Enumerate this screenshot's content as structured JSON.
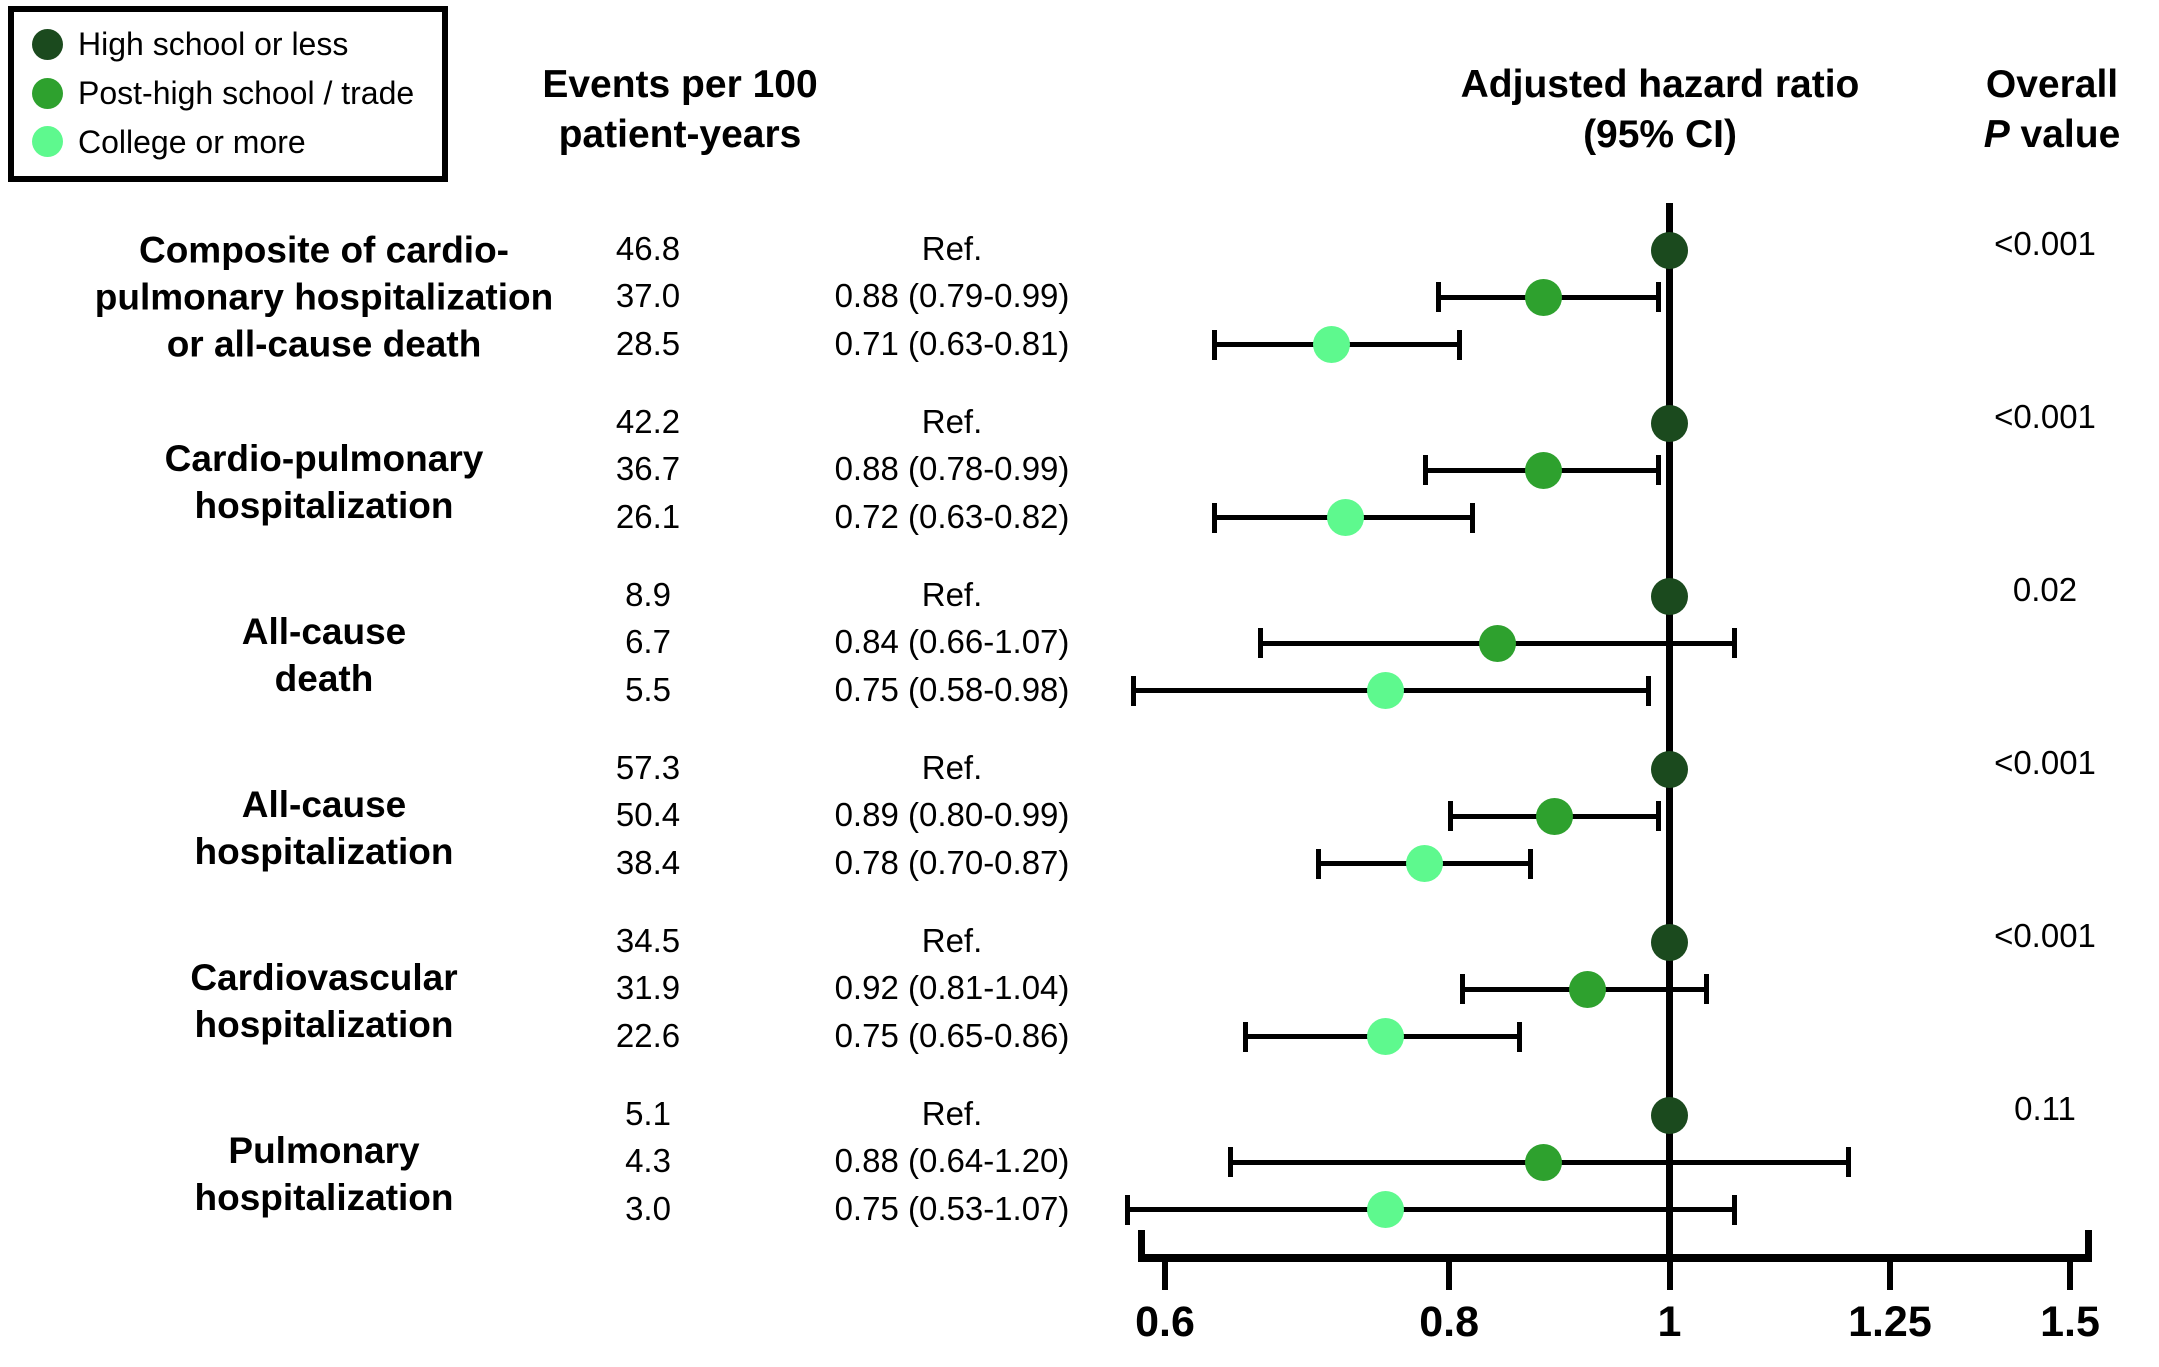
{
  "legend": {
    "items": [
      {
        "label": "High school or less",
        "color": "#1b4a1e"
      },
      {
        "label": "Post-high school / trade",
        "color": "#2ea12e"
      },
      {
        "label": "College or more",
        "color": "#5ef98e"
      }
    ]
  },
  "headers": {
    "events_line1": "Events per 100",
    "events_line2": "patient-years",
    "hr_line1": "Adjusted hazard ratio",
    "hr_line2": "(95% CI)",
    "overall_line1": "Overall",
    "overall_p": "P",
    "overall_rest": " value"
  },
  "chart_data": {
    "type": "forest",
    "title": "Adjusted hazard ratio (95% CI) by education level",
    "x_axis": {
      "scale": "log",
      "ticks": [
        0.6,
        0.8,
        1,
        1.25,
        1.5
      ],
      "tick_labels": [
        "0.6",
        "0.8",
        "1",
        "1.25",
        "1.5"
      ],
      "reference_line": 1.0
    },
    "legend_position": "top-left",
    "series_colors": [
      "#1b4a1e",
      "#2ea12e",
      "#5ef98e"
    ],
    "series_names": [
      "High school or less",
      "Post-high school / trade",
      "College or more"
    ],
    "groups": [
      {
        "outcome_lines": [
          "Composite of cardio-",
          "pulmonary hospitalization",
          "or all-cause death"
        ],
        "p_value": "<0.001",
        "rows": [
          {
            "events": "46.8",
            "hr_label": "Ref.",
            "hr": 1.0
          },
          {
            "events": "37.0",
            "hr_label": "0.88 (0.79-0.99)",
            "hr": 0.88,
            "lo": 0.79,
            "hi": 0.99
          },
          {
            "events": "28.5",
            "hr_label": "0.71 (0.63-0.81)",
            "hr": 0.71,
            "lo": 0.63,
            "hi": 0.81
          }
        ]
      },
      {
        "outcome_lines": [
          "Cardio-pulmonary",
          "hospitalization"
        ],
        "p_value": "<0.001",
        "rows": [
          {
            "events": "42.2",
            "hr_label": "Ref.",
            "hr": 1.0
          },
          {
            "events": "36.7",
            "hr_label": "0.88 (0.78-0.99)",
            "hr": 0.88,
            "lo": 0.78,
            "hi": 0.99
          },
          {
            "events": "26.1",
            "hr_label": "0.72 (0.63-0.82)",
            "hr": 0.72,
            "lo": 0.63,
            "hi": 0.82
          }
        ]
      },
      {
        "outcome_lines": [
          "All-cause",
          "death"
        ],
        "p_value": "0.02",
        "rows": [
          {
            "events": "8.9",
            "hr_label": "Ref.",
            "hr": 1.0
          },
          {
            "events": "6.7",
            "hr_label": "0.84 (0.66-1.07)",
            "hr": 0.84,
            "lo": 0.66,
            "hi": 1.07
          },
          {
            "events": "5.5",
            "hr_label": "0.75 (0.58-0.98)",
            "hr": 0.75,
            "lo": 0.58,
            "hi": 0.98
          }
        ]
      },
      {
        "outcome_lines": [
          "All-cause",
          "hospitalization"
        ],
        "p_value": "<0.001",
        "rows": [
          {
            "events": "57.3",
            "hr_label": "Ref.",
            "hr": 1.0
          },
          {
            "events": "50.4",
            "hr_label": "0.89 (0.80-0.99)",
            "hr": 0.89,
            "lo": 0.8,
            "hi": 0.99
          },
          {
            "events": "38.4",
            "hr_label": "0.78 (0.70-0.87)",
            "hr": 0.78,
            "lo": 0.7,
            "hi": 0.87
          }
        ]
      },
      {
        "outcome_lines": [
          "Cardiovascular",
          "hospitalization"
        ],
        "p_value": "<0.001",
        "rows": [
          {
            "events": "34.5",
            "hr_label": "Ref.",
            "hr": 1.0
          },
          {
            "events": "31.9",
            "hr_label": "0.92 (0.81-1.04)",
            "hr": 0.92,
            "lo": 0.81,
            "hi": 1.04
          },
          {
            "events": "22.6",
            "hr_label": "0.75 (0.65-0.86)",
            "hr": 0.75,
            "lo": 0.65,
            "hi": 0.86
          }
        ]
      },
      {
        "outcome_lines": [
          "Pulmonary",
          "hospitalization"
        ],
        "p_value": "0.11",
        "rows": [
          {
            "events": "5.1",
            "hr_label": "Ref.",
            "hr": 1.0
          },
          {
            "events": "4.3",
            "hr_label": "0.88 (0.64-1.20)",
            "hr": 0.88,
            "lo": 0.64,
            "hi": 1.2
          },
          {
            "events": "3.0",
            "hr_label": "0.75 (0.53-1.07)",
            "hr": 0.75,
            "lo": 0.53,
            "hi": 1.07
          }
        ]
      }
    ]
  }
}
